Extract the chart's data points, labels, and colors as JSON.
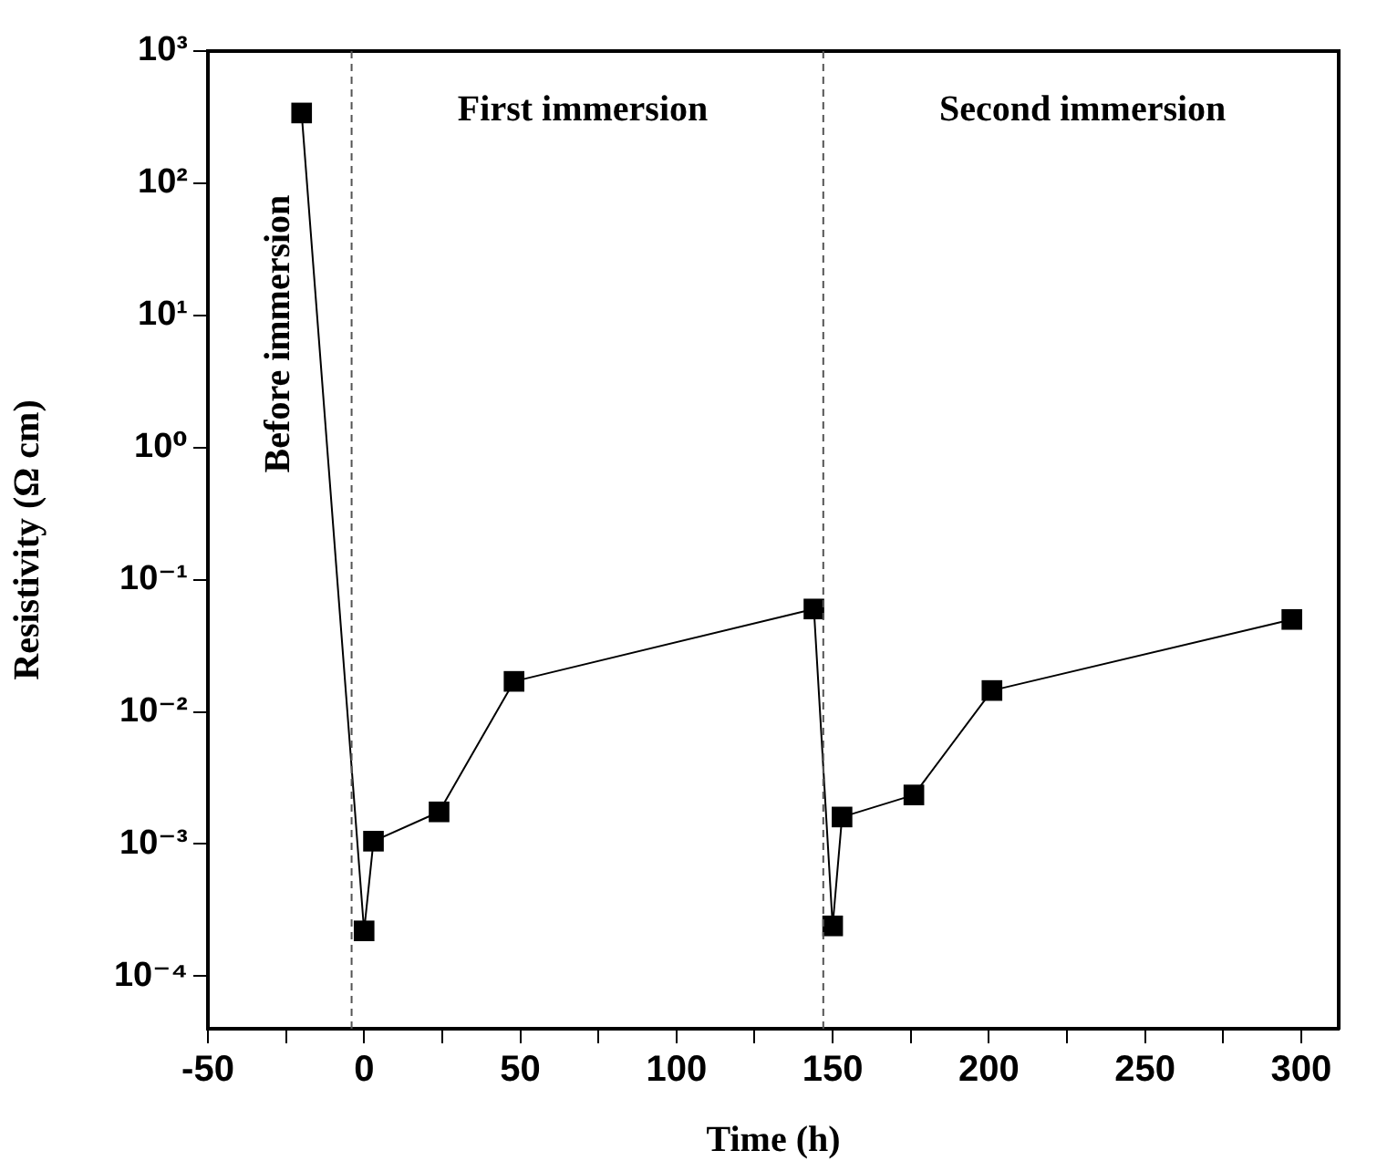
{
  "chart_data": {
    "type": "line",
    "xlabel": "Time (h)",
    "ylabel": "Resistivity (Ω cm)",
    "x": [
      -20,
      0,
      3,
      24,
      48,
      144,
      150,
      153,
      176,
      201,
      297
    ],
    "series": [
      {
        "color": "#000000",
        "values": [
          340,
          0.00022,
          0.00105,
          0.00175,
          0.017,
          0.06,
          0.00024,
          0.0016,
          0.00235,
          0.0145,
          0.05
        ]
      }
    ],
    "xlim": [
      -50,
      312
    ],
    "xticks": [
      -50,
      {
        "value": -25,
        "label": null
      },
      0,
      {
        "value": 25,
        "label": null
      },
      50,
      {
        "value": 75,
        "label": null
      },
      100,
      {
        "value": 125,
        "label": null
      },
      150,
      {
        "value": 175,
        "label": null
      },
      200,
      {
        "value": 225,
        "label": null
      },
      250,
      {
        "value": 275,
        "label": null
      },
      300
    ],
    "ylim": [
      4e-05,
      1000
    ],
    "yticks": [
      {
        "value": 1000,
        "label": "10³"
      },
      {
        "value": 100,
        "label": "10²"
      },
      {
        "value": 10,
        "label": "10¹"
      },
      {
        "value": 1,
        "label": "10⁰"
      },
      {
        "value": 0.1,
        "label": "10⁻¹"
      },
      {
        "value": 0.01,
        "label": "10⁻²"
      },
      {
        "value": 0.001,
        "label": "10⁻³"
      },
      {
        "value": 0.0001,
        "label": "10⁻⁴"
      }
    ],
    "log": "y",
    "grid": false,
    "legend": false,
    "marker": "square",
    "line_style": "solid",
    "ref_lines": [
      {
        "axis": "x",
        "value": -4,
        "line_style": "dashed",
        "color": "#555555"
      },
      {
        "axis": "x",
        "value": 147,
        "line_style": "dashed",
        "color": "#555555"
      }
    ],
    "annotations": [
      "Before immersion",
      "First immersion",
      "Second immersion"
    ]
  }
}
